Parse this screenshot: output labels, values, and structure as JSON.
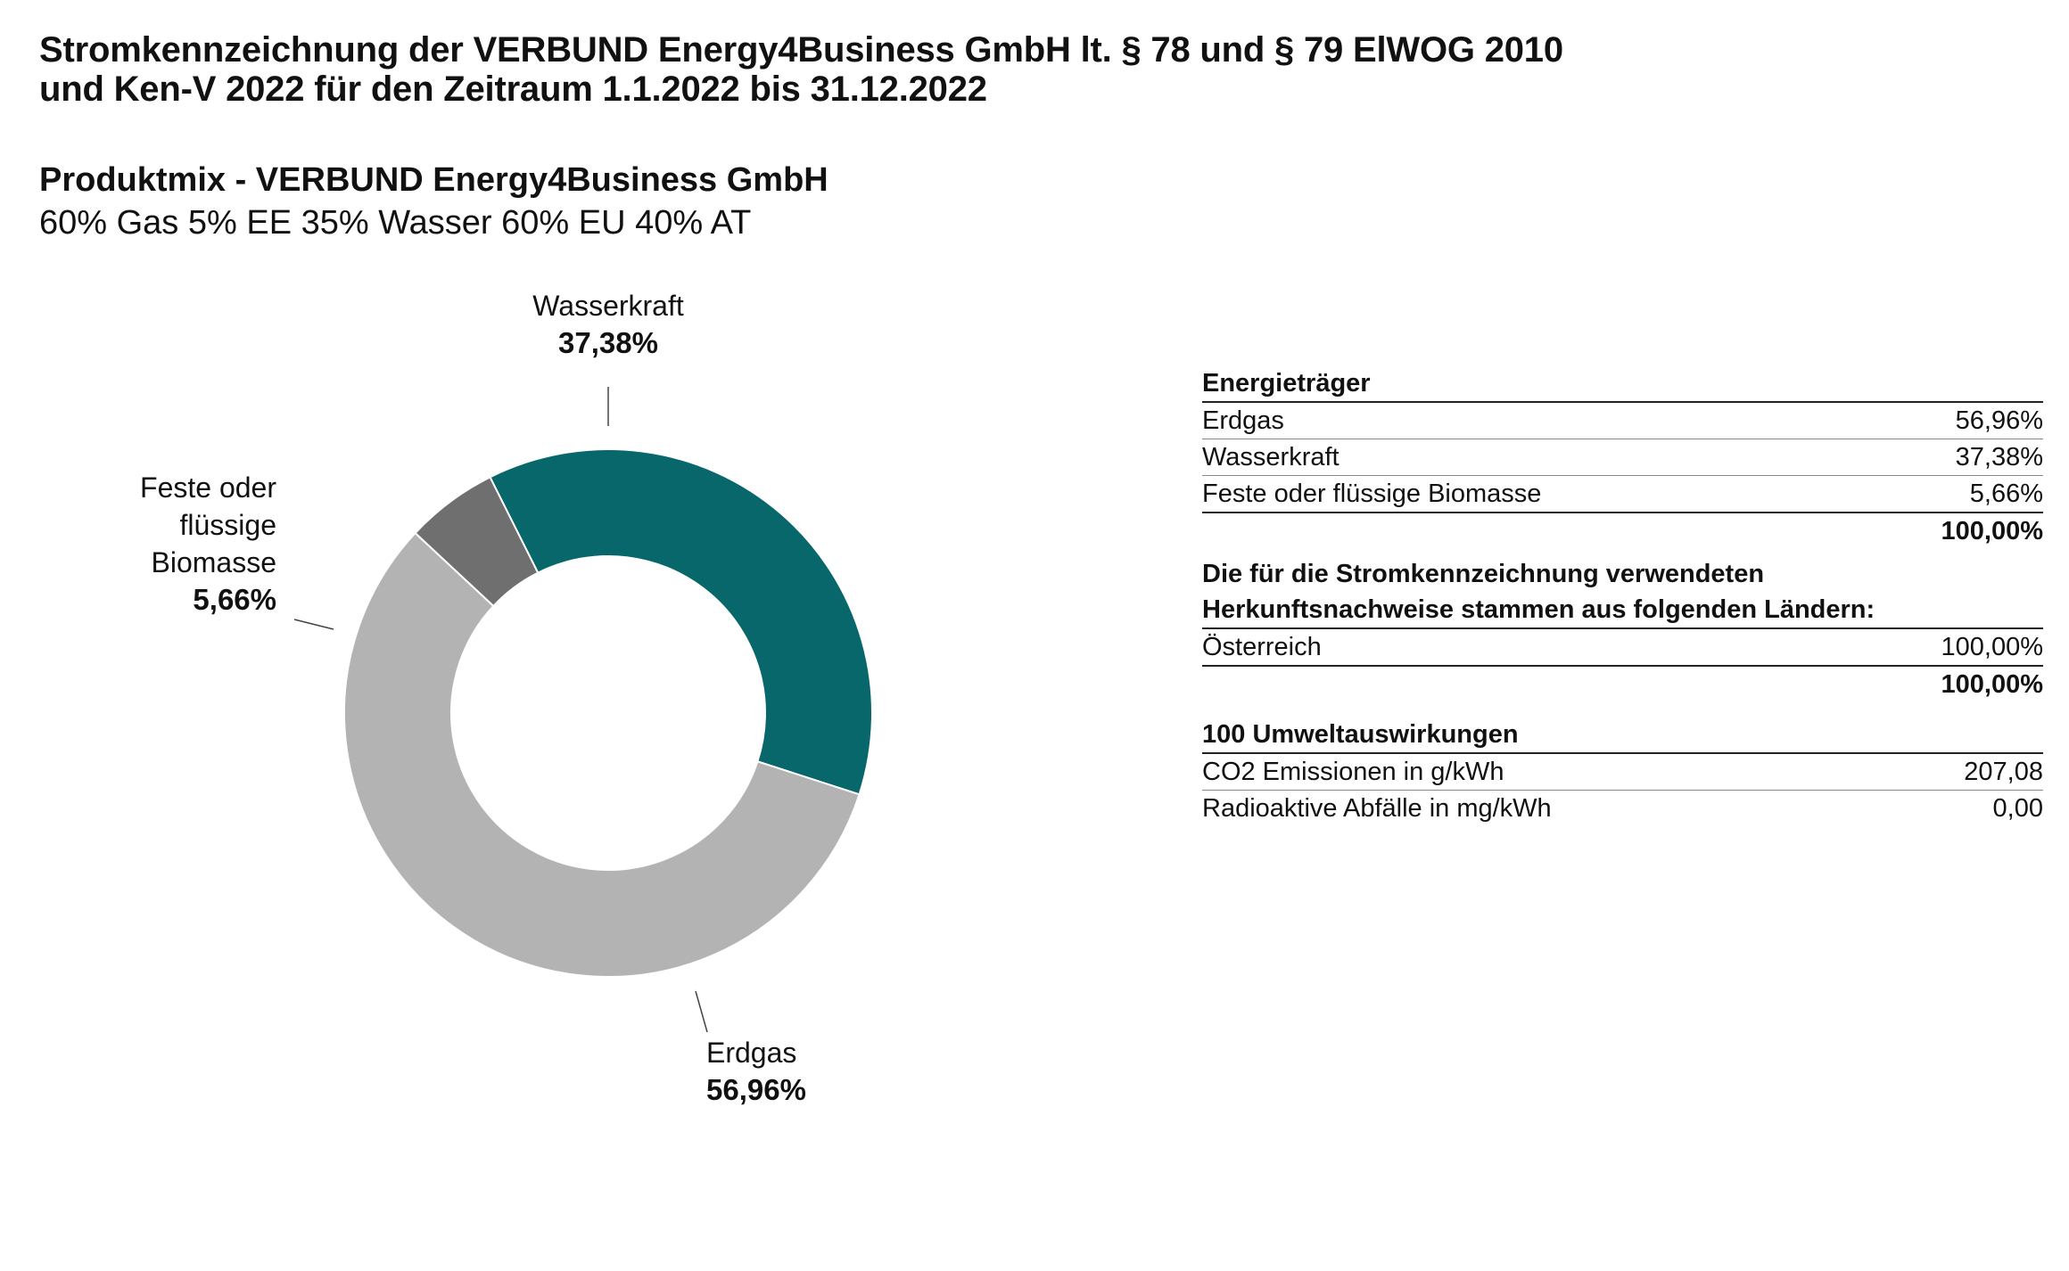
{
  "header": {
    "title_line1": "Stromkennzeichnung der VERBUND Energy4Business GmbH lt. § 78 und § 79 ElWOG 2010",
    "title_line2": "und Ken-V 2022 für den Zeitraum 1.1.2022 bis 31.12.2022"
  },
  "product": {
    "title": "Produktmix - VERBUND Energy4Business GmbH",
    "mix": "60% Gas 5% EE 35% Wasser 60% EU 40% AT"
  },
  "chart_data": {
    "type": "pie",
    "style": "donut",
    "slices": [
      {
        "label": "Wasserkraft",
        "value": 37.38,
        "value_label": "37,38%",
        "color": "#07676A"
      },
      {
        "label": "Erdgas",
        "value": 56.96,
        "value_label": "56,96%",
        "color": "#B3B3B3"
      },
      {
        "label": "Feste oder flüssige Biomasse",
        "label_lines": [
          "Feste oder",
          "flüssige",
          "Biomasse"
        ],
        "value": 5.66,
        "value_label": "5,66%",
        "color": "#6F6F6F"
      }
    ]
  },
  "energy_table": {
    "header": "Energieträger",
    "rows": [
      {
        "label": "Erdgas",
        "value": "56,96%"
      },
      {
        "label": "Wasserkraft",
        "value": "37,38%"
      },
      {
        "label": "Feste oder flüssige Biomasse",
        "value": "5,66%"
      }
    ],
    "total": "100,00%"
  },
  "origin_table": {
    "header_line1": "Die für die Stromkennzeichnung verwendeten",
    "header_line2": "Herkunftsnachweise stammen aus folgenden Ländern:",
    "rows": [
      {
        "label": "Österreich",
        "value": "100,00%"
      }
    ],
    "total": "100,00%"
  },
  "environment_table": {
    "header": "100 Umweltauswirkungen",
    "rows": [
      {
        "label": "CO2 Emissionen in g/kWh",
        "value": "207,08"
      },
      {
        "label": "Radioaktive Abfälle in mg/kWh",
        "value": "0,00"
      }
    ]
  }
}
